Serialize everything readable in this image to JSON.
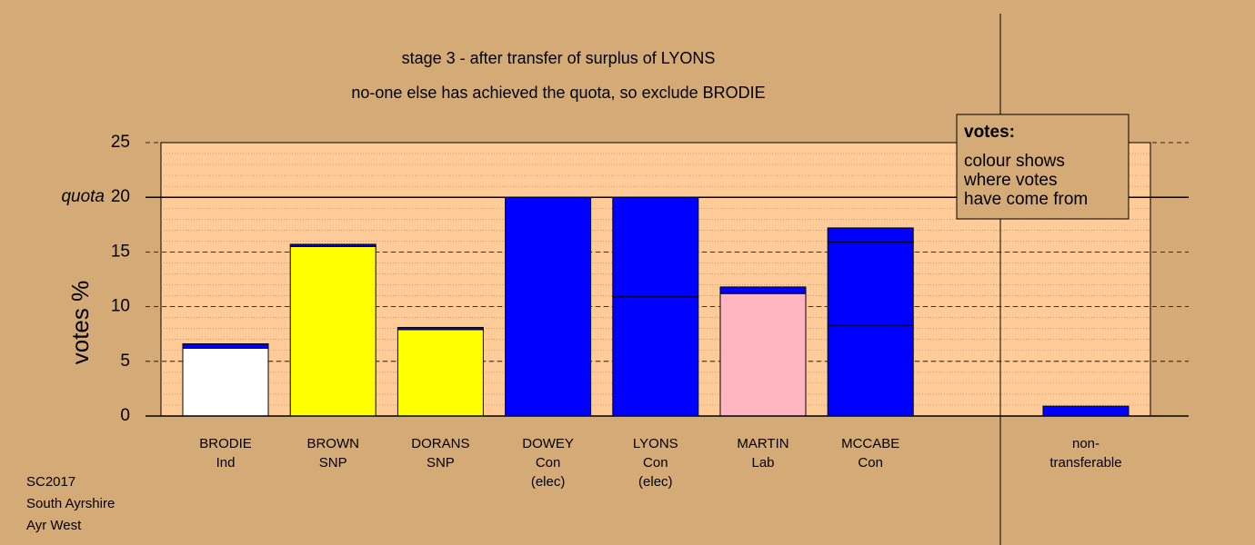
{
  "chart_data": {
    "type": "stacked-bar",
    "title": "stage 3 - after transfer of surplus of LYONS",
    "subtitle": "no-one else has achieved the quota, so exclude BRODIE",
    "y_label": "votes %",
    "quota": 20,
    "quota_label": "quota",
    "ylim": [
      0,
      25
    ],
    "yticks": [
      0,
      5,
      10,
      15,
      20,
      25
    ],
    "minor_step": 1,
    "grid": true,
    "bars": [
      {
        "lines": [
          "BRODIE",
          "Ind"
        ],
        "values": [
          6.2,
          0.4
        ],
        "colors": [
          "#ffffff",
          "#0000ff"
        ]
      },
      {
        "lines": [
          "BROWN",
          "SNP"
        ],
        "values": [
          15.5,
          0.2
        ],
        "colors": [
          "#ffff00",
          "#0000ff"
        ]
      },
      {
        "lines": [
          "DORANS",
          "SNP"
        ],
        "values": [
          7.9,
          0.2
        ],
        "colors": [
          "#ffff00",
          "#0000ff"
        ]
      },
      {
        "lines": [
          "DOWEY",
          "Con",
          "(elec)"
        ],
        "values": [
          20
        ],
        "colors": [
          "#0000ff"
        ]
      },
      {
        "lines": [
          "LYONS",
          "Con",
          "(elec)"
        ],
        "values": [
          10.9,
          9.1
        ],
        "colors": [
          "#0000ff",
          "#0000ff"
        ]
      },
      {
        "lines": [
          "MARTIN",
          "Lab"
        ],
        "values": [
          11.2,
          0.6
        ],
        "colors": [
          "#ffb6c1",
          "#0000ff"
        ]
      },
      {
        "lines": [
          "MCCABE",
          "Con"
        ],
        "values": [
          8.3,
          7.6,
          1.3
        ],
        "colors": [
          "#0000ff",
          "#0000ff",
          "#0000ff"
        ]
      }
    ],
    "other_bar": {
      "lines": [
        "non-",
        "transferable"
      ],
      "values": [
        0.9
      ],
      "colors": [
        "#0000ff"
      ]
    },
    "legend": {
      "title": "votes:",
      "lines": [
        "colour shows",
        "where votes",
        "have come from"
      ]
    },
    "footer": [
      "SC2017",
      "South Ayrshire",
      "Ayr West"
    ]
  }
}
